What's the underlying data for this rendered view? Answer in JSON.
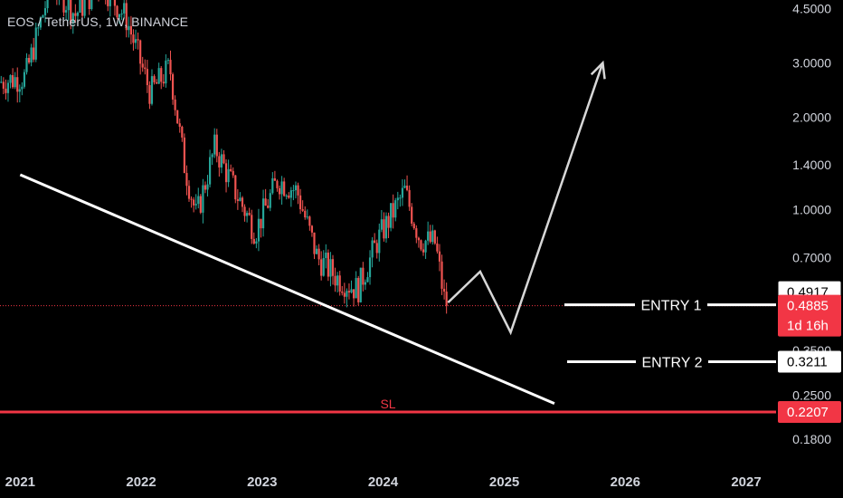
{
  "header": {
    "title": "EOS / TetherUS, 1W, BINANCE"
  },
  "colors": {
    "up": "#26a69a",
    "down": "#ef5350",
    "sl": "#f23645",
    "background": "#000000",
    "text": "#d1d4dc",
    "price_line": "#f23645"
  },
  "chart_data": {
    "type": "candlestick",
    "scale": "log",
    "ylim": [
      0.15,
      4.8
    ],
    "xlim": [
      "2020-11-01",
      "2027-04-01"
    ],
    "y_ticks": [
      "4.5000",
      "3.0000",
      "2.0000",
      "1.4000",
      "1.0000",
      "0.7000",
      "0.3500",
      "0.2500",
      "0.1800"
    ],
    "x_ticks": [
      "2021",
      "2022",
      "2023",
      "2024",
      "2025",
      "2026",
      "2027"
    ],
    "anchors": [
      {
        "date": "2020-11-01",
        "price": 2.6
      },
      {
        "date": "2021-01-20",
        "price": 2.7
      },
      {
        "date": "2021-04-10",
        "price": 5.5
      },
      {
        "date": "2021-06-20",
        "price": 4.3
      },
      {
        "date": "2021-09-05",
        "price": 5.5
      },
      {
        "date": "2021-11-20",
        "price": 4.2
      },
      {
        "date": "2022-02-01",
        "price": 2.4
      },
      {
        "date": "2022-04-01",
        "price": 2.9
      },
      {
        "date": "2022-05-15",
        "price": 1.4
      },
      {
        "date": "2022-06-20",
        "price": 0.95
      },
      {
        "date": "2022-08-15",
        "price": 1.6
      },
      {
        "date": "2022-10-15",
        "price": 1.15
      },
      {
        "date": "2022-12-15",
        "price": 0.85
      },
      {
        "date": "2023-02-20",
        "price": 1.25
      },
      {
        "date": "2023-04-20",
        "price": 1.15
      },
      {
        "date": "2023-06-20",
        "price": 0.7
      },
      {
        "date": "2023-08-20",
        "price": 0.6
      },
      {
        "date": "2023-10-20",
        "price": 0.55
      },
      {
        "date": "2023-12-20",
        "price": 0.8
      },
      {
        "date": "2024-03-10",
        "price": 1.15
      },
      {
        "date": "2024-04-25",
        "price": 0.8
      },
      {
        "date": "2024-06-10",
        "price": 0.78
      },
      {
        "date": "2024-07-10",
        "price": 0.49
      }
    ],
    "current_price": 0.4885,
    "annotations": {
      "trendline": {
        "from": {
          "date": "2021-01-01",
          "price": 1.3
        },
        "to": {
          "date": "2025-06-01",
          "price": 0.235
        }
      },
      "projection": [
        {
          "date": "2024-07-15",
          "price": 0.5
        },
        {
          "date": "2024-10-20",
          "price": 0.63
        },
        {
          "date": "2025-01-20",
          "price": 0.4
        },
        {
          "date": "2025-10-25",
          "price": 3.0
        }
      ],
      "entry1": {
        "label": "ENTRY 1",
        "price": 0.4917
      },
      "entry2": {
        "label": "ENTRY 2",
        "price": 0.3211
      },
      "sl": {
        "label": "SL",
        "price": 0.2207
      }
    }
  },
  "price_scale": {
    "entry1_badge": "0.4917",
    "current_badge": "0.4885",
    "countdown": "1d 16h",
    "entry2_badge": "0.3211",
    "sl_badge": "0.2207"
  }
}
